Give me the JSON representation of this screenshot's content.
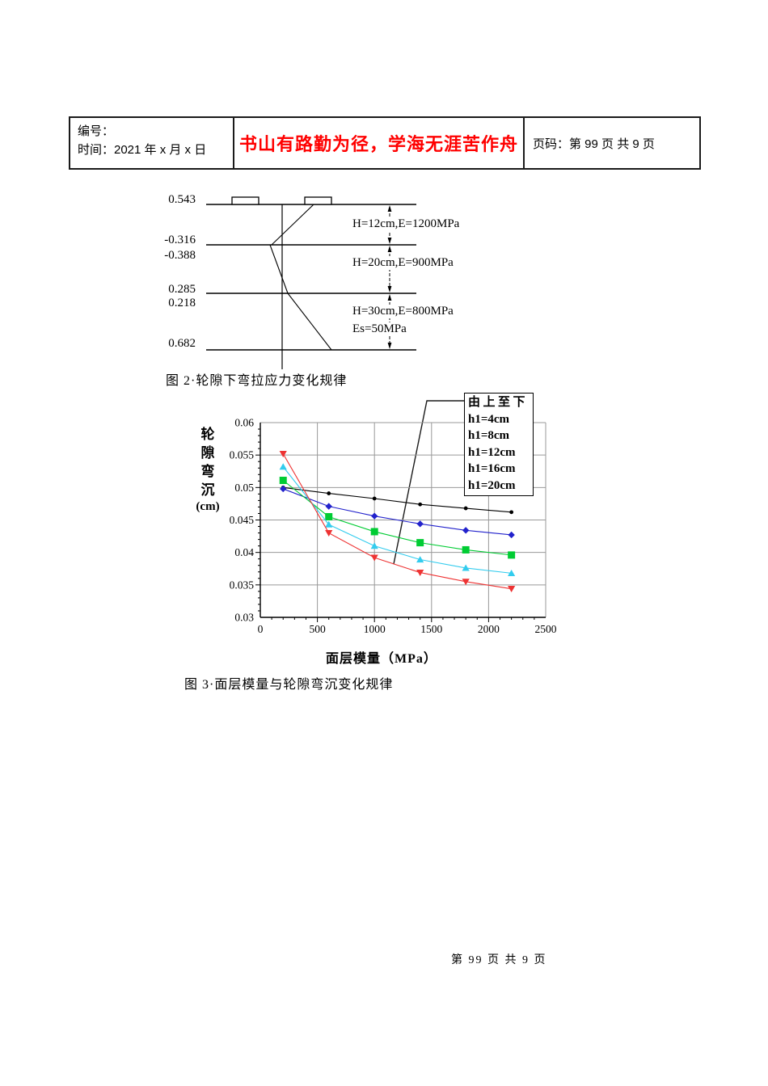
{
  "header": {
    "number_line": "编号：",
    "time_line": "时间：2021 年 x 月 x 日",
    "motto": "书山有路勤为径，学海无涯苦作舟",
    "page_info": "页码：第 99 页 共 9 页"
  },
  "figure2": {
    "caption": "图 2·轮隙下弯拉应力变化规律",
    "stress_values": [
      "0.543",
      "-0.316",
      "-0.388",
      "0.285",
      "0.218",
      "0.682"
    ],
    "layer_labels": [
      "H=12cm,E=1200MPa",
      "H=20cm,E=900MPa",
      "H=30cm,E=800MPa",
      "Es=50MPa"
    ]
  },
  "figure3": {
    "caption": "图 3·面层模量与轮隙弯沉变化规律",
    "ylabel_chars": [
      "轮",
      "隙",
      "弯",
      "沉"
    ],
    "ylabel_unit": "(cm)",
    "xlabel": "面层模量（MPa）",
    "legend": {
      "title": "由上至下",
      "items": [
        "h1=4cm",
        "h1=8cm",
        "h1=12cm",
        "h1=16cm",
        "h1=20cm"
      ]
    }
  },
  "chart_data": {
    "type": "line",
    "title": "",
    "xlabel": "面层模量（MPa）",
    "ylabel": "轮隙弯沉(cm)",
    "xlim": [
      0,
      2500
    ],
    "ylim": [
      0.03,
      0.06
    ],
    "x_ticks": [
      0,
      500,
      1000,
      1500,
      2000,
      2500
    ],
    "y_ticks": [
      0.03,
      0.035,
      0.04,
      0.045,
      0.05,
      0.055,
      0.06
    ],
    "grid": true,
    "legend_position": "top-right",
    "legend_title": "由上至下",
    "x": [
      200,
      600,
      1000,
      1400,
      1800,
      2200
    ],
    "series": [
      {
        "name": "h1=4cm",
        "color": "#000000",
        "marker": "circle",
        "values": [
          0.05,
          0.0491,
          0.0483,
          0.0474,
          0.0468,
          0.0462
        ]
      },
      {
        "name": "h1=8cm",
        "color": "#2222cc",
        "marker": "diamond",
        "values": [
          0.0498,
          0.0471,
          0.0456,
          0.0444,
          0.0434,
          0.0427
        ]
      },
      {
        "name": "h1=12cm",
        "color": "#00cc33",
        "marker": "square",
        "values": [
          0.0511,
          0.0455,
          0.0432,
          0.0415,
          0.0404,
          0.0396
        ]
      },
      {
        "name": "h1=16cm",
        "color": "#33ccee",
        "marker": "triangle-up",
        "values": [
          0.0532,
          0.0443,
          0.041,
          0.0389,
          0.0376,
          0.0368
        ]
      },
      {
        "name": "h1=20cm",
        "color": "#ee3333",
        "marker": "triangle-down",
        "values": [
          0.0552,
          0.043,
          0.0392,
          0.0369,
          0.0355,
          0.0344
        ]
      }
    ]
  },
  "footer": {
    "page_text": "第 99 页 共 9 页"
  }
}
